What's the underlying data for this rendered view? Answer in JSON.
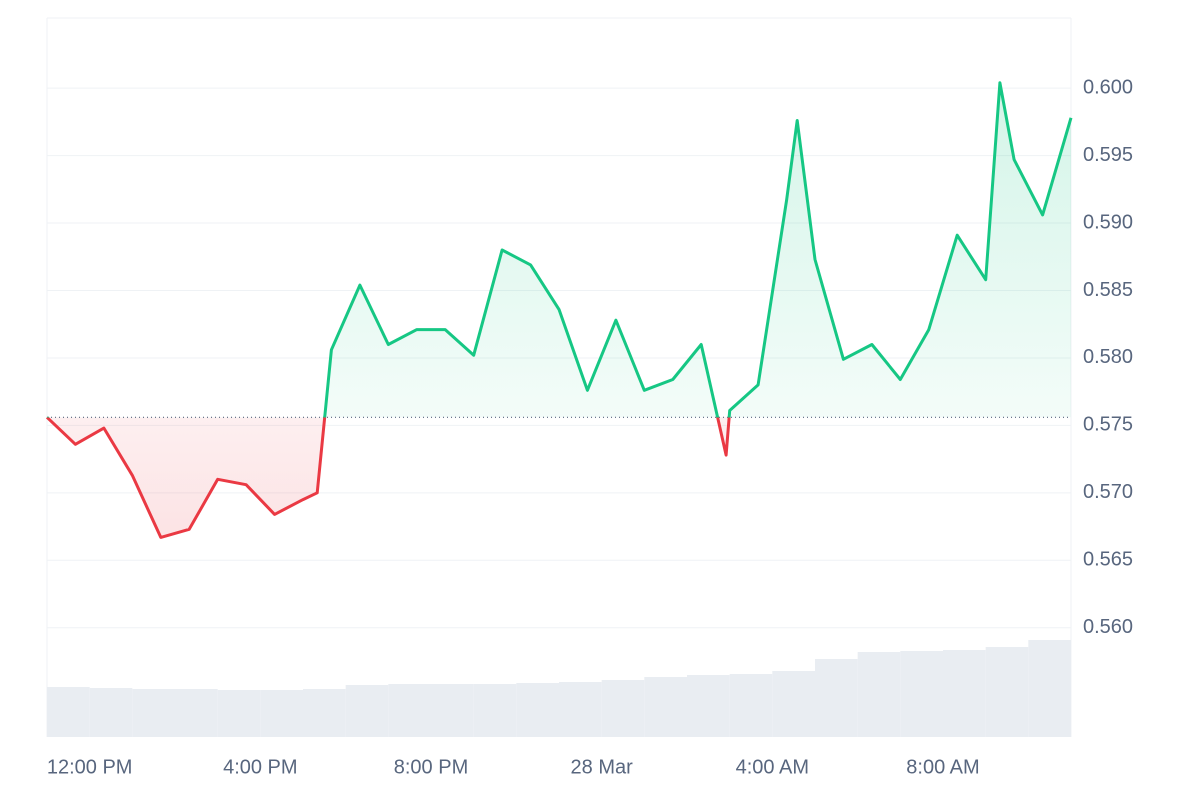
{
  "chart_data": {
    "type": "line",
    "x": [
      "27 Mar 11:00",
      "27 Mar 11:40",
      "27 Mar 12:20",
      "27 Mar 13:00",
      "27 Mar 13:40",
      "27 Mar 14:20",
      "27 Mar 15:00",
      "27 Mar 15:40",
      "27 Mar 16:20",
      "27 Mar 17:00",
      "27 Mar 17:20",
      "27 Mar 17:40",
      "27 Mar 18:20",
      "27 Mar 19:00",
      "27 Mar 19:40",
      "27 Mar 20:20",
      "27 Mar 21:00",
      "27 Mar 21:40",
      "27 Mar 22:20",
      "27 Mar 23:00",
      "27 Mar 23:40",
      "28 Mar 00:20",
      "28 Mar 01:00",
      "28 Mar 01:40",
      "28 Mar 02:20",
      "28 Mar 02:55",
      "28 Mar 03:00",
      "28 Mar 03:40",
      "28 Mar 04:20",
      "28 Mar 04:35",
      "28 Mar 05:00",
      "28 Mar 05:40",
      "28 Mar 06:20",
      "28 Mar 07:00",
      "28 Mar 07:40",
      "28 Mar 08:20",
      "28 Mar 09:00",
      "28 Mar 09:20",
      "28 Mar 09:40",
      "28 Mar 10:20",
      "28 Mar 11:00"
    ],
    "series": [
      {
        "color_up": "#16c784",
        "color_down": "#ea3943",
        "values": [
          0.5756,
          0.5736,
          0.5748,
          0.5713,
          0.5667,
          0.5673,
          0.571,
          0.5706,
          0.5684,
          0.5695,
          0.57,
          0.5806,
          0.5854,
          0.581,
          0.5821,
          0.5821,
          0.5802,
          0.588,
          0.5869,
          0.5836,
          0.5776,
          0.5828,
          0.5776,
          0.5784,
          0.581,
          0.5728,
          0.5761,
          0.578,
          0.5917,
          0.5976,
          0.5873,
          0.5799,
          0.581,
          0.5784,
          0.5821,
          0.5891,
          0.5858,
          0.6004,
          0.5947,
          0.5906,
          0.5978
        ]
      }
    ],
    "baseline": 0.5756,
    "volume": {
      "color": "#e9edf2",
      "x": [
        "27 Mar 11:00",
        "27 Mar 12:00",
        "27 Mar 13:00",
        "27 Mar 14:00",
        "27 Mar 15:00",
        "27 Mar 16:00",
        "27 Mar 17:00",
        "27 Mar 18:00",
        "27 Mar 19:00",
        "27 Mar 20:00",
        "27 Mar 21:00",
        "27 Mar 22:00",
        "27 Mar 23:00",
        "28 Mar 00:00",
        "28 Mar 01:00",
        "28 Mar 02:00",
        "28 Mar 03:00",
        "28 Mar 04:00",
        "28 Mar 05:00",
        "28 Mar 06:00",
        "28 Mar 07:00",
        "28 Mar 08:00",
        "28 Mar 09:00",
        "28 Mar 10:00"
      ],
      "values": [
        50,
        49,
        48,
        48,
        47,
        47,
        48,
        52,
        53,
        53,
        53,
        54,
        55,
        57,
        60,
        62,
        63,
        66,
        78,
        85,
        86,
        87,
        90,
        97
      ],
      "ylim": [
        0,
        100
      ]
    },
    "xlim": [
      "27 Mar 11:00",
      "28 Mar 11:00"
    ],
    "xticks": [
      {
        "value": "27 Mar 12:00",
        "label": "12:00 PM"
      },
      {
        "value": "27 Mar 16:00",
        "label": "4:00 PM"
      },
      {
        "value": "27 Mar 20:00",
        "label": "8:00 PM"
      },
      {
        "value": "28 Mar 00:00",
        "label": "28 Mar"
      },
      {
        "value": "28 Mar 04:00",
        "label": "4:00 AM"
      },
      {
        "value": "28 Mar 08:00",
        "label": "8:00 AM"
      }
    ],
    "ylim": [
      0.5519,
      0.6052
    ],
    "yticks": [
      {
        "value": 0.56,
        "label": "0.560"
      },
      0.565,
      {
        "value": 0.57,
        "label": "0.570"
      },
      0.575,
      {
        "value": 0.58,
        "label": "0.580"
      },
      0.585,
      {
        "value": 0.59,
        "label": "0.590"
      },
      0.595,
      {
        "value": 0.6,
        "label": "0.600"
      }
    ],
    "grid": true
  }
}
